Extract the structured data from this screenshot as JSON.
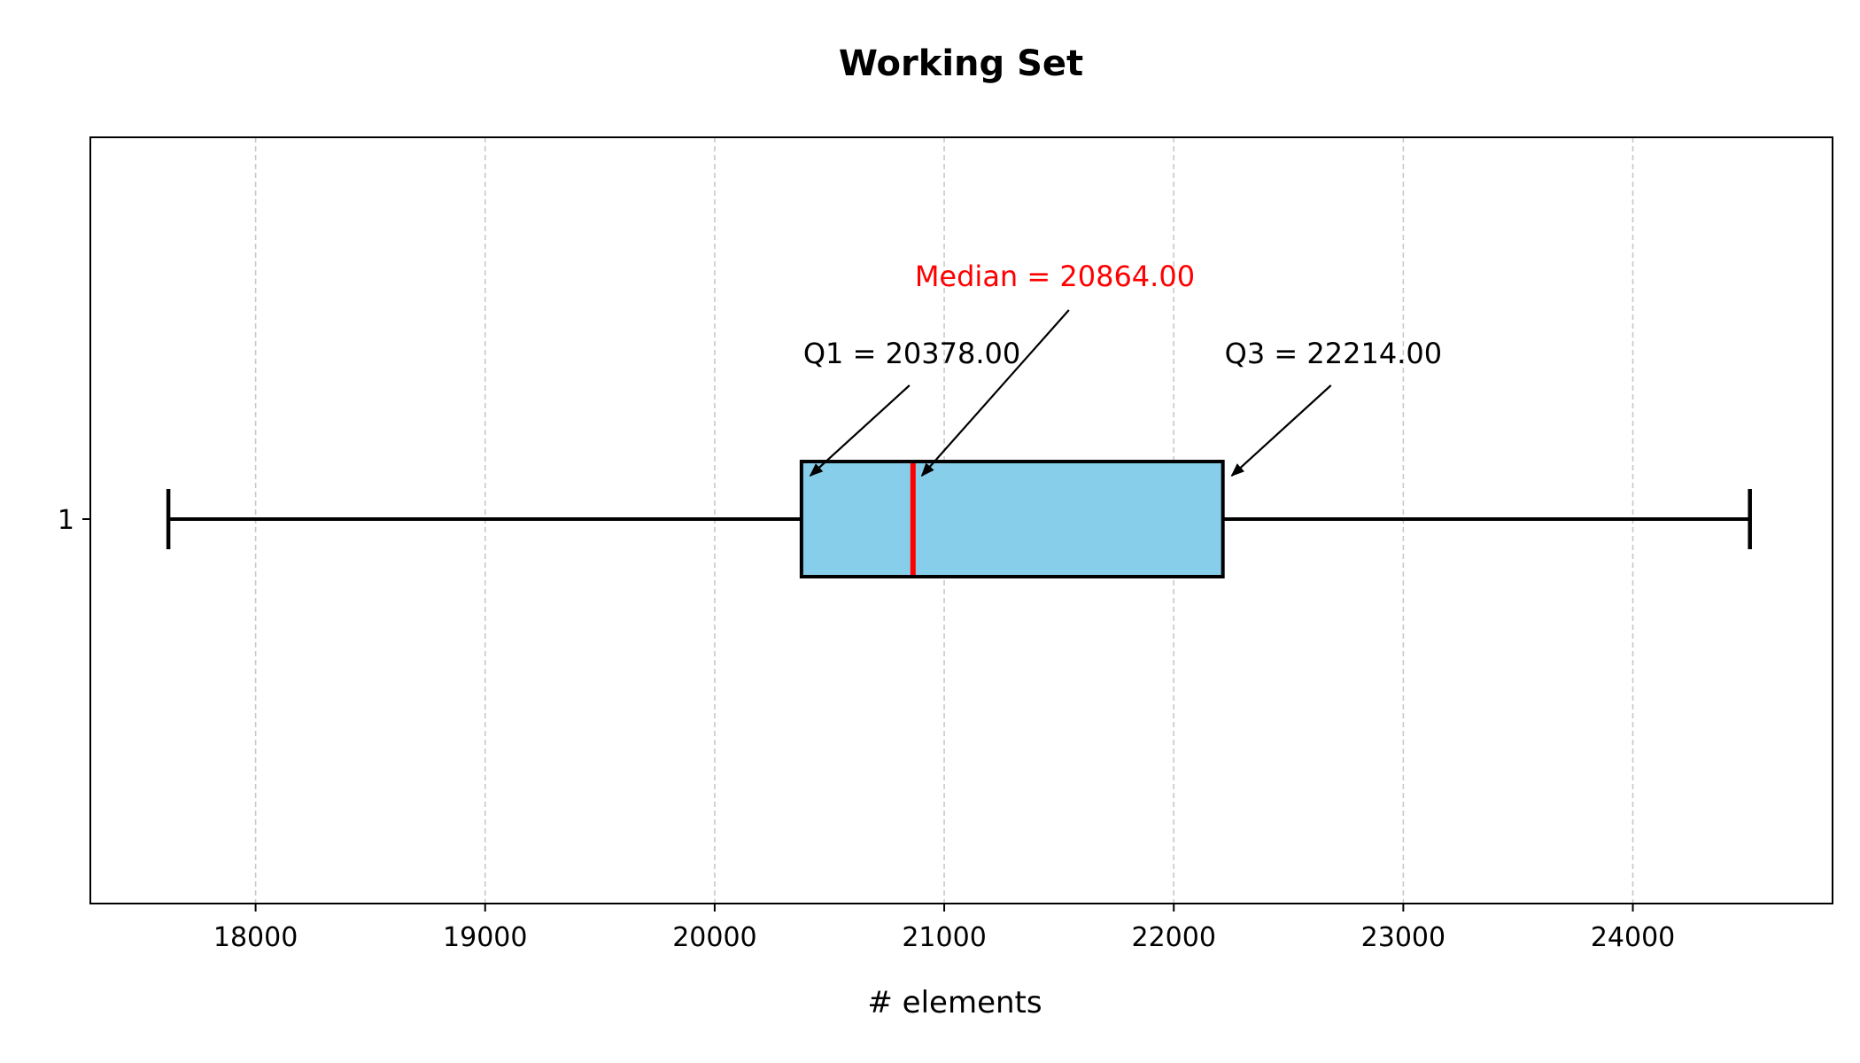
{
  "chart_data": {
    "type": "boxplot",
    "orientation": "horizontal",
    "title": "Working Set",
    "xlabel": "# elements",
    "ylabel": "",
    "xlim": [
      17280,
      24870
    ],
    "xticks": [
      18000,
      19000,
      20000,
      21000,
      22000,
      23000,
      24000
    ],
    "yticks": [
      "1"
    ],
    "grid": "x, dashed",
    "series": [
      {
        "category": "1",
        "whisker_low": 17620,
        "q1": 20378.0,
        "median": 20864.0,
        "q3": 22214.0,
        "whisker_high": 24510
      }
    ],
    "annotations": {
      "median": "Median = 20864.00",
      "q1": "Q1 = 20378.00",
      "q3": "Q3 = 22214.00"
    },
    "colors": {
      "box_fill": "#87ceeb",
      "median_line": "#ff0000",
      "median_text": "#ff0000",
      "grid": "#c8c8c8",
      "lines": "#000000"
    }
  }
}
